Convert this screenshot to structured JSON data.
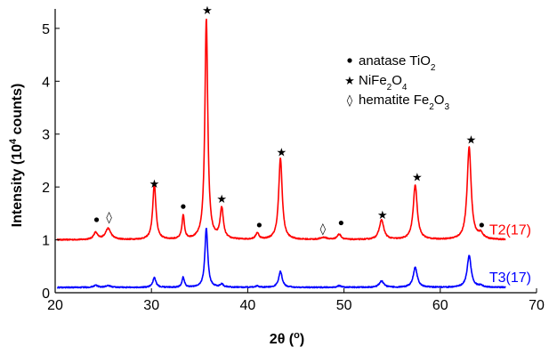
{
  "chart_data": {
    "type": "line",
    "title": "",
    "xlabel_parts": [
      {
        "t": "2θ (",
        "sup": false
      },
      {
        "t": "o",
        "sup": true
      },
      {
        "t": ")",
        "sup": false
      }
    ],
    "ylabel_parts": [
      {
        "t": "Intensity (10",
        "sup": false
      },
      {
        "t": "4",
        "sup": true
      },
      {
        "t": " counts)",
        "sup": false
      }
    ],
    "xlim": [
      20,
      70
    ],
    "ylim": [
      0,
      5.2
    ],
    "xticks": [
      20,
      30,
      40,
      50,
      60,
      70
    ],
    "yticks": [
      0,
      1,
      2,
      3,
      4,
      5
    ],
    "grid": false,
    "legend_position": "top-right",
    "legend": [
      {
        "symbol": "circle",
        "parts": [
          {
            "t": "anatase TiO",
            "sub": false
          },
          {
            "t": "2",
            "sub": true
          }
        ]
      },
      {
        "symbol": "star",
        "parts": [
          {
            "t": "NiFe",
            "sub": false
          },
          {
            "t": "2",
            "sub": true
          },
          {
            "t": "O",
            "sub": false
          },
          {
            "t": "4",
            "sub": true
          }
        ]
      },
      {
        "symbol": "diamond",
        "parts": [
          {
            "t": "hematite Fe",
            "sub": false
          },
          {
            "t": "2",
            "sub": true
          },
          {
            "t": "O",
            "sub": false
          },
          {
            "t": "3",
            "sub": true
          }
        ]
      }
    ],
    "series": [
      {
        "name": "T2(17)",
        "color": "#ff0000",
        "baseline": 1.0,
        "x_range": [
          20.2,
          66.8
        ],
        "peaks": [
          {
            "x": 24.2,
            "h": 0.13,
            "w": 0.25
          },
          {
            "x": 25.5,
            "h": 0.21,
            "w": 0.35
          },
          {
            "x": 30.3,
            "h": 1.05,
            "w": 0.2
          },
          {
            "x": 33.3,
            "h": 0.45,
            "w": 0.15
          },
          {
            "x": 35.7,
            "h": 4.17,
            "w": 0.18
          },
          {
            "x": 37.3,
            "h": 0.58,
            "w": 0.2
          },
          {
            "x": 41.0,
            "h": 0.12,
            "w": 0.2
          },
          {
            "x": 43.4,
            "h": 1.54,
            "w": 0.22
          },
          {
            "x": 47.9,
            "h": 0.04,
            "w": 0.4
          },
          {
            "x": 49.5,
            "h": 0.1,
            "w": 0.25
          },
          {
            "x": 53.9,
            "h": 0.37,
            "w": 0.28
          },
          {
            "x": 57.4,
            "h": 1.03,
            "w": 0.25
          },
          {
            "x": 63.0,
            "h": 1.75,
            "w": 0.25
          },
          {
            "x": 64.2,
            "h": 0.1,
            "w": 0.3
          }
        ]
      },
      {
        "name": "T3(17)",
        "color": "#0000ff",
        "baseline": 0.1,
        "x_range": [
          20.2,
          66.8
        ],
        "peaks": [
          {
            "x": 24.2,
            "h": 0.04,
            "w": 0.25
          },
          {
            "x": 25.5,
            "h": 0.03,
            "w": 0.35
          },
          {
            "x": 30.3,
            "h": 0.18,
            "w": 0.2
          },
          {
            "x": 33.3,
            "h": 0.19,
            "w": 0.15
          },
          {
            "x": 35.7,
            "h": 1.12,
            "w": 0.18
          },
          {
            "x": 37.3,
            "h": 0.06,
            "w": 0.2
          },
          {
            "x": 41.0,
            "h": 0.03,
            "w": 0.2
          },
          {
            "x": 43.4,
            "h": 0.3,
            "w": 0.22
          },
          {
            "x": 49.5,
            "h": 0.03,
            "w": 0.25
          },
          {
            "x": 53.9,
            "h": 0.12,
            "w": 0.28
          },
          {
            "x": 57.4,
            "h": 0.38,
            "w": 0.25
          },
          {
            "x": 63.0,
            "h": 0.6,
            "w": 0.25
          },
          {
            "x": 64.2,
            "h": 0.03,
            "w": 0.3
          }
        ]
      }
    ],
    "markers": [
      {
        "symbol": "circle",
        "x": 24.3,
        "y": 1.38
      },
      {
        "symbol": "diamond",
        "x": 25.6,
        "y": 1.44
      },
      {
        "symbol": "star",
        "x": 30.3,
        "y": 2.07
      },
      {
        "symbol": "circle",
        "x": 33.3,
        "y": 1.63
      },
      {
        "symbol": "star",
        "x": 35.8,
        "y": 5.35
      },
      {
        "symbol": "star",
        "x": 37.3,
        "y": 1.78
      },
      {
        "symbol": "circle",
        "x": 41.2,
        "y": 1.28
      },
      {
        "symbol": "star",
        "x": 43.5,
        "y": 2.67
      },
      {
        "symbol": "diamond",
        "x": 47.8,
        "y": 1.22
      },
      {
        "symbol": "circle",
        "x": 49.7,
        "y": 1.32
      },
      {
        "symbol": "star",
        "x": 54.0,
        "y": 1.48
      },
      {
        "symbol": "star",
        "x": 57.6,
        "y": 2.2
      },
      {
        "symbol": "star",
        "x": 63.2,
        "y": 2.9
      },
      {
        "symbol": "circle",
        "x": 64.3,
        "y": 1.28
      }
    ]
  }
}
